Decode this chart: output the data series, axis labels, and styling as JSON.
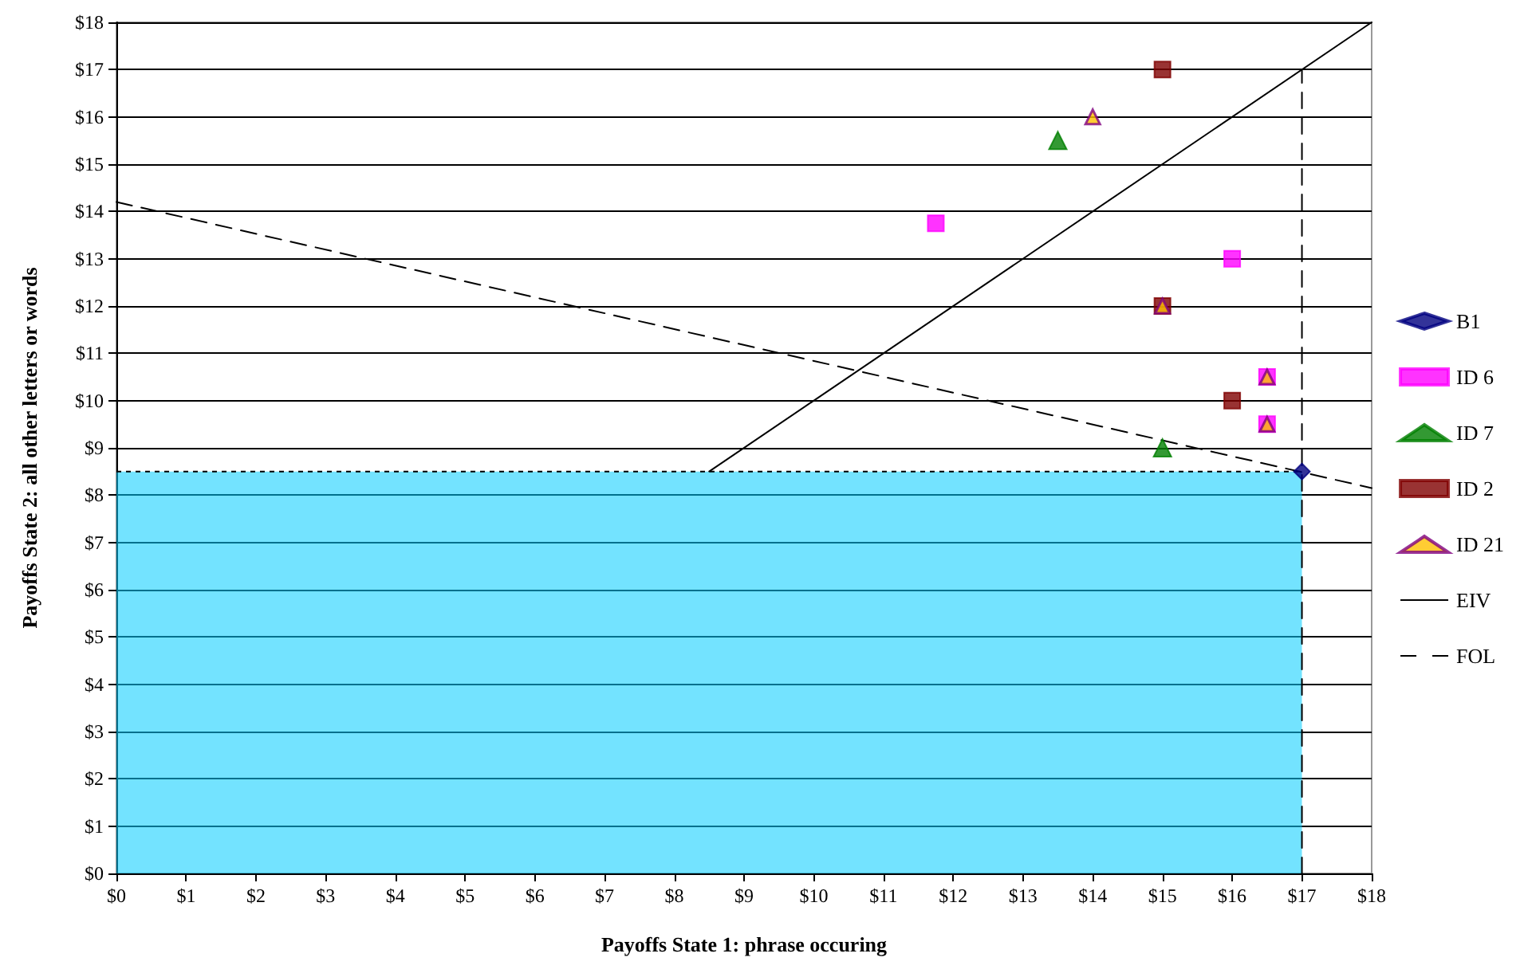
{
  "chart_data": {
    "type": "scatter",
    "xlabel": "Payoffs State 1: phrase occuring",
    "ylabel": "Payoffs State 2: all other letters or words",
    "xlim": [
      0,
      18
    ],
    "xticks": [
      {
        "value": 0,
        "label": "$0"
      },
      {
        "value": 1,
        "label": "$1"
      },
      {
        "value": 2,
        "label": "$2"
      },
      {
        "value": 3,
        "label": "$3"
      },
      {
        "value": 4,
        "label": "$4"
      },
      {
        "value": 5,
        "label": "$5"
      },
      {
        "value": 6,
        "label": "$6"
      },
      {
        "value": 7,
        "label": "$7"
      },
      {
        "value": 8,
        "label": "$8"
      },
      {
        "value": 9,
        "label": "$9"
      },
      {
        "value": 10,
        "label": "$10"
      },
      {
        "value": 11,
        "label": "$11"
      },
      {
        "value": 12,
        "label": "$12"
      },
      {
        "value": 13,
        "label": "$13"
      },
      {
        "value": 14,
        "label": "$14"
      },
      {
        "value": 15,
        "label": "$15"
      },
      {
        "value": 16,
        "label": "$16"
      },
      {
        "value": 17,
        "label": "$17"
      },
      {
        "value": 18,
        "label": "$18"
      }
    ],
    "ylim": [
      0,
      18
    ],
    "yticks": [
      {
        "value": 0,
        "label": "$0"
      },
      {
        "value": 1,
        "label": "$1"
      },
      {
        "value": 2,
        "label": "$2"
      },
      {
        "value": 3,
        "label": "$3"
      },
      {
        "value": 4,
        "label": "$4"
      },
      {
        "value": 5,
        "label": "$5"
      },
      {
        "value": 6,
        "label": "$6"
      },
      {
        "value": 7,
        "label": "$7"
      },
      {
        "value": 8,
        "label": "$8"
      },
      {
        "value": 9,
        "label": "$9"
      },
      {
        "value": 10,
        "label": "$10"
      },
      {
        "value": 11,
        "label": "$11"
      },
      {
        "value": 12,
        "label": "$12"
      },
      {
        "value": 13,
        "label": "$13"
      },
      {
        "value": 14,
        "label": "$14"
      },
      {
        "value": 15,
        "label": "$15"
      },
      {
        "value": 16,
        "label": "$16"
      },
      {
        "value": 17,
        "label": "$17"
      },
      {
        "value": 18,
        "label": "$18"
      }
    ],
    "grid": "y",
    "legend": "right",
    "series": [
      {
        "type": "area",
        "color": "#00ccff",
        "x": [
          0,
          17
        ],
        "values": [
          8.5,
          8.5
        ],
        "marker": "none",
        "line_style": "dotted"
      },
      {
        "type": "line",
        "color": "#000000",
        "x": [
          17,
          17
        ],
        "values": [
          0,
          17
        ],
        "marker": "none",
        "line_style": "dashed"
      },
      {
        "name": "B1",
        "color": "#000080",
        "marker": "diamond",
        "x": [
          17
        ],
        "values": [
          8.5
        ]
      },
      {
        "name": "ID 6",
        "color": "#ff00ff",
        "marker": "square",
        "x": [
          11.75,
          16,
          16.5,
          16.5
        ],
        "values": [
          13.75,
          13,
          10.5,
          9.5
        ]
      },
      {
        "name": "ID 7",
        "color": "#008000",
        "marker": "triangle",
        "x": [
          13.5,
          15
        ],
        "values": [
          15.5,
          9
        ]
      },
      {
        "name": "ID 2",
        "color": "#800000",
        "marker": "square",
        "x": [
          15,
          15,
          16
        ],
        "values": [
          17,
          12,
          10
        ]
      },
      {
        "name": "ID 21",
        "color": "#ffc000",
        "marker": "triangle",
        "x": [
          14,
          15,
          16.5,
          16.5
        ],
        "values": [
          16,
          12,
          10.5,
          9.5
        ]
      },
      {
        "name": "EIV",
        "type": "line",
        "color": "#000000",
        "marker": "none",
        "line_style": "solid",
        "x": [
          8.5,
          18
        ],
        "values": [
          8.5,
          18
        ]
      },
      {
        "name": "FOL",
        "type": "line",
        "color": "#000000",
        "marker": "none",
        "line_style": "dashed",
        "x": [
          0,
          18
        ],
        "values": [
          14.2,
          8.15
        ]
      }
    ]
  }
}
